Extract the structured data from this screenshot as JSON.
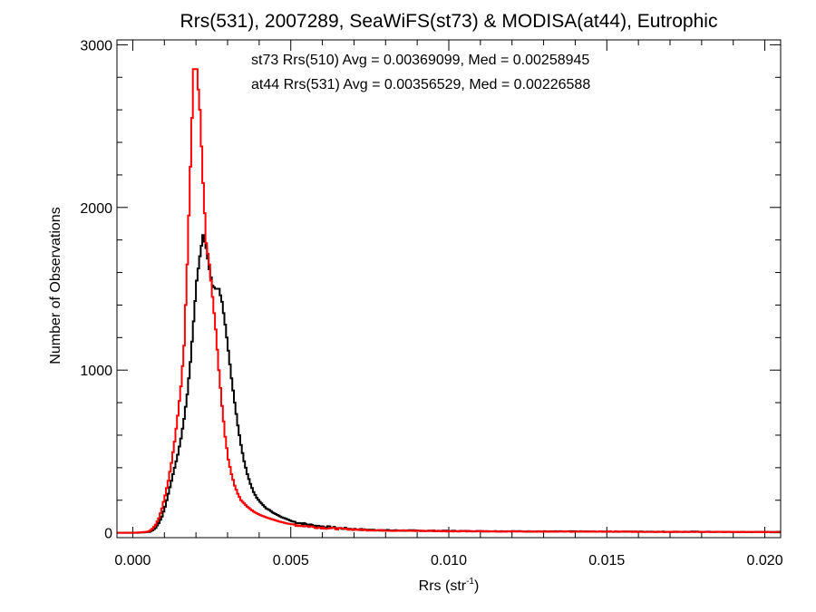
{
  "chart_data": {
    "type": "line",
    "title": "Rrs(531), 2007289, SeaWiFS(st73) & MODISA(at44), Eutrophic",
    "xlabel_main": "Rrs (str",
    "xlabel_sup": "-1",
    "xlabel_end": ")",
    "ylabel": "Number of Observations",
    "xlim": [
      -0.0005,
      0.0205
    ],
    "ylim": [
      -30,
      3030
    ],
    "x_ticks": [
      0.0,
      0.005,
      0.01,
      0.015,
      0.02
    ],
    "x_tick_labels": [
      "0.000",
      "0.005",
      "0.010",
      "0.015",
      "0.020"
    ],
    "y_ticks": [
      0,
      1000,
      2000,
      3000
    ],
    "y_tick_labels": [
      "0",
      "1000",
      "2000",
      "3000"
    ],
    "annotations": [
      "st73 Rrs(510) Avg = 0.00369099, Med = 0.00258945",
      "at44 Rrs(531) Avg = 0.00356529, Med = 0.00226588"
    ],
    "colors": {
      "st73": "#000000",
      "at44": "#ff0000"
    },
    "bin_width": 0.0001,
    "series": [
      {
        "color": "#000000",
        "x": [
          0.0005,
          0.0006,
          0.0007,
          0.0008,
          0.0009,
          0.001,
          0.0011,
          0.0012,
          0.0013,
          0.0014,
          0.0015,
          0.0016,
          0.0017,
          0.0018,
          0.0019,
          0.002,
          0.0021,
          0.0022,
          0.0023,
          0.0024,
          0.0025,
          0.0026,
          0.0027,
          0.0028,
          0.0029,
          0.003,
          0.0031,
          0.0032,
          0.0033,
          0.0034,
          0.0035,
          0.0036,
          0.0037,
          0.0038,
          0.0039,
          0.004,
          0.0041,
          0.0042,
          0.0043,
          0.0044,
          0.0045,
          0.0046,
          0.0047,
          0.0048,
          0.0049,
          0.005,
          0.0052,
          0.0054,
          0.0056,
          0.0058,
          0.006,
          0.0062,
          0.0064,
          0.0066,
          0.0068,
          0.007,
          0.0072,
          0.0074,
          0.0076,
          0.0078,
          0.008,
          0.0085,
          0.009,
          0.0095,
          0.01,
          0.011,
          0.012,
          0.013,
          0.014,
          0.015,
          0.016,
          0.017,
          0.018,
          0.019,
          0.02,
          0.0205
        ],
        "y": [
          5,
          15,
          30,
          60,
          100,
          160,
          240,
          320,
          400,
          480,
          580,
          700,
          850,
          1050,
          1300,
          1550,
          1700,
          1830,
          1750,
          1620,
          1520,
          1500,
          1500,
          1420,
          1280,
          1120,
          950,
          800,
          660,
          540,
          440,
          360,
          300,
          250,
          215,
          190,
          170,
          150,
          140,
          125,
          115,
          105,
          95,
          88,
          80,
          72,
          62,
          55,
          48,
          42,
          38,
          34,
          30,
          27,
          25,
          22,
          20,
          18,
          17,
          16,
          15,
          14,
          13,
          12,
          11,
          10,
          9,
          8,
          8,
          7,
          7,
          6,
          6,
          5,
          5,
          5
        ]
      },
      {
        "color": "#ff0000",
        "x": [
          0.0004,
          0.0005,
          0.0006,
          0.0007,
          0.0008,
          0.0009,
          0.001,
          0.0011,
          0.0012,
          0.0013,
          0.0014,
          0.0015,
          0.0016,
          0.0017,
          0.0018,
          0.0019,
          0.002,
          0.0021,
          0.0022,
          0.0023,
          0.0024,
          0.0025,
          0.0026,
          0.0027,
          0.0028,
          0.0029,
          0.003,
          0.0031,
          0.0032,
          0.0033,
          0.0034,
          0.0035,
          0.0036,
          0.0037,
          0.0038,
          0.0039,
          0.004,
          0.0041,
          0.0042,
          0.0043,
          0.0044,
          0.0045,
          0.0046,
          0.0047,
          0.0048,
          0.0049,
          0.005,
          0.0052,
          0.0054,
          0.0056,
          0.0058,
          0.006,
          0.0062,
          0.0064,
          0.0066,
          0.0068,
          0.007,
          0.0072,
          0.0074,
          0.0076,
          0.0078,
          0.008,
          0.0085,
          0.009,
          0.0095,
          0.01,
          0.011,
          0.012,
          0.013,
          0.014,
          0.015,
          0.016,
          0.017,
          0.018,
          0.019,
          0.02,
          0.0205
        ],
        "y": [
          5,
          10,
          25,
          50,
          90,
          150,
          230,
          320,
          430,
          560,
          720,
          900,
          1150,
          1650,
          2250,
          2850,
          2850,
          2600,
          2150,
          1780,
          1650,
          1450,
          1250,
          1000,
          780,
          590,
          450,
          360,
          290,
          240,
          200,
          180,
          160,
          145,
          130,
          120,
          110,
          102,
          95,
          88,
          82,
          76,
          70,
          65,
          60,
          56,
          52,
          46,
          42,
          38,
          34,
          31,
          28,
          26,
          24,
          22,
          20,
          18,
          17,
          16,
          15,
          14,
          13,
          12,
          11,
          10,
          9,
          8,
          8,
          7,
          7,
          6,
          6,
          5,
          5,
          5,
          5
        ]
      }
    ]
  }
}
